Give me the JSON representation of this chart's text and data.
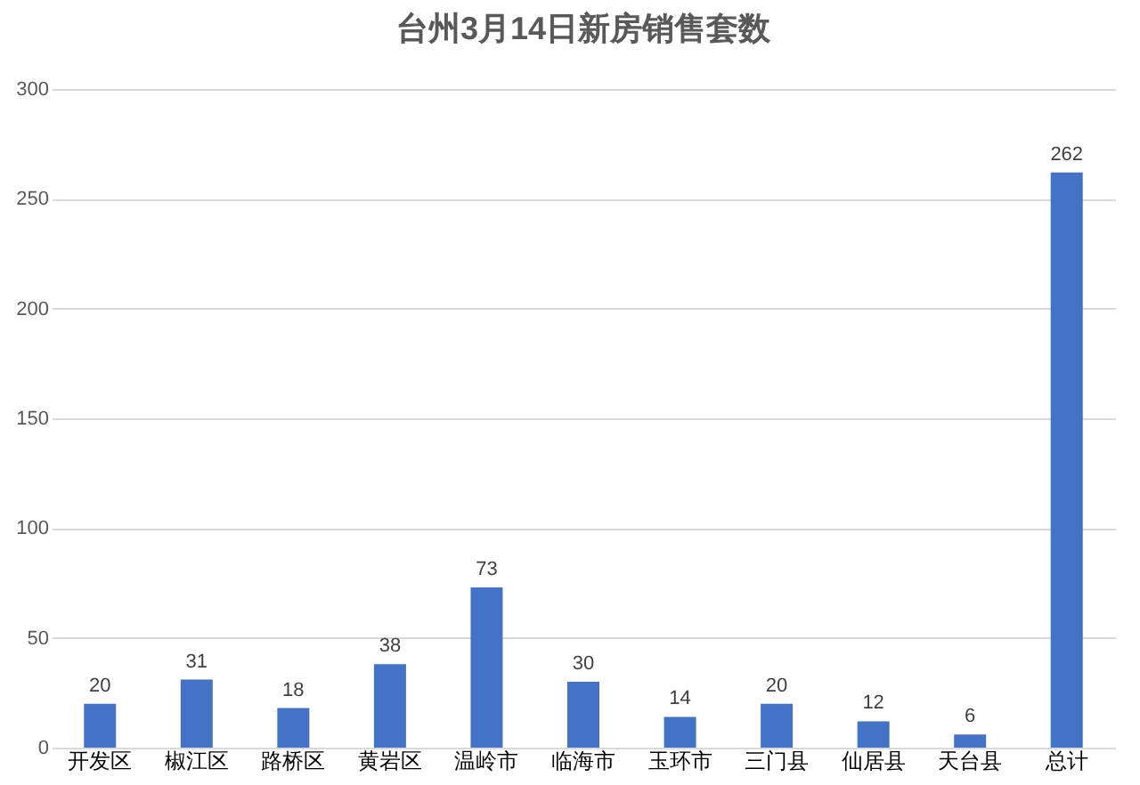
{
  "chart_data": {
    "type": "bar",
    "title": "台州3月14日新房销售套数",
    "categories": [
      "开发区",
      "椒江区",
      "路桥区",
      "黄岩区",
      "温岭市",
      "临海市",
      "玉环市",
      "三门县",
      "仙居县",
      "天台县",
      "总计"
    ],
    "values": [
      20,
      31,
      18,
      38,
      73,
      30,
      14,
      20,
      12,
      6,
      262
    ],
    "color": "#4472c4",
    "ylim": [
      0,
      300
    ],
    "yticks": [
      0,
      50,
      100,
      150,
      200,
      250,
      300
    ],
    "grid": "y",
    "data_labels": true
  }
}
